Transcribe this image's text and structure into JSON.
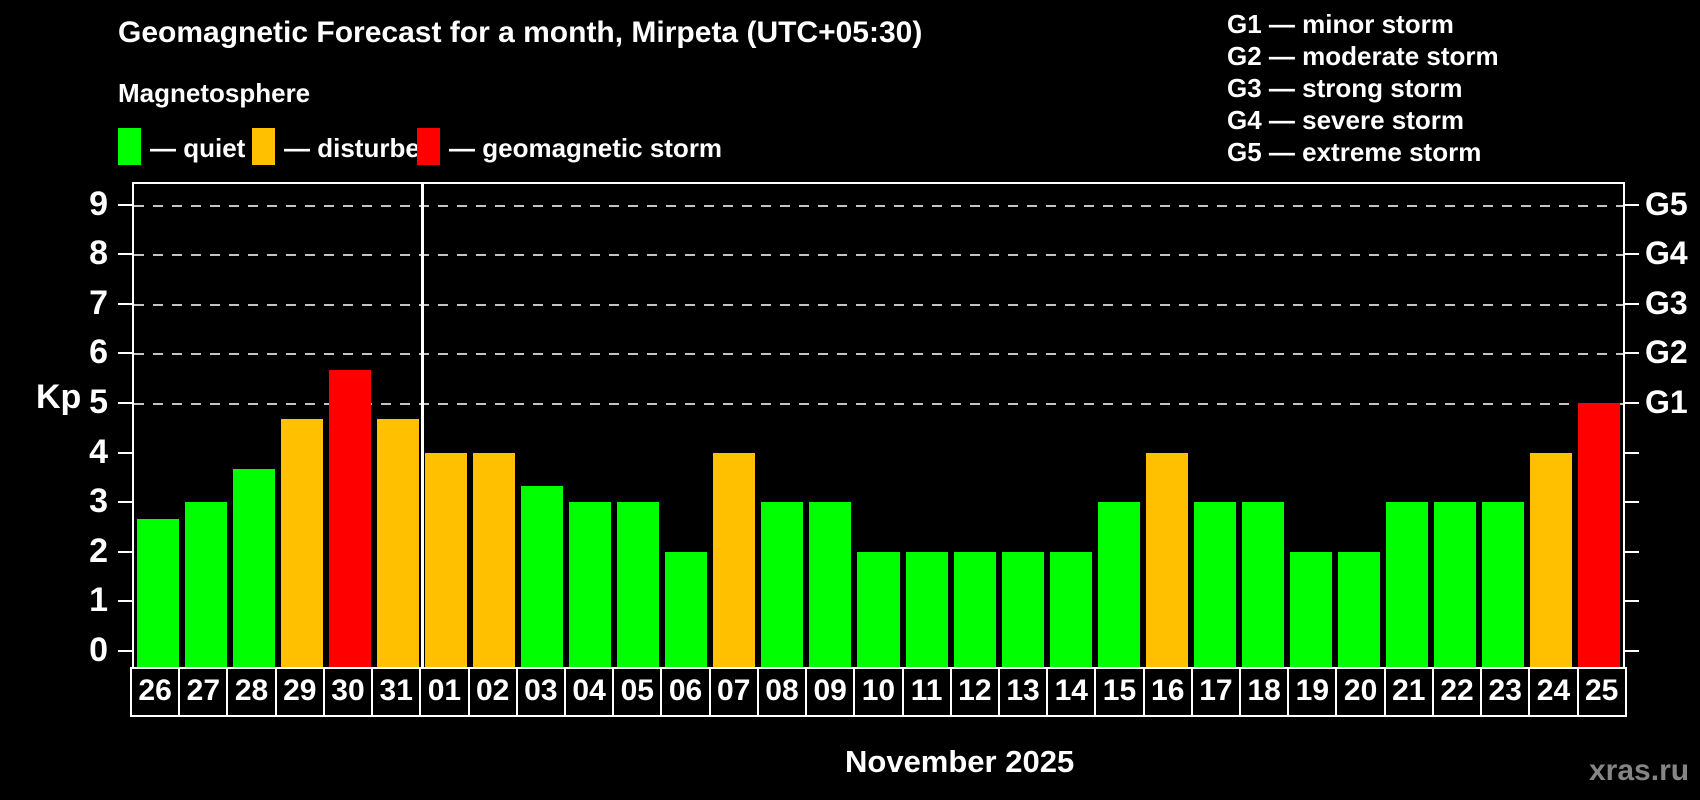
{
  "header": {
    "title": "Geomagnetic Forecast for a month, Mirpeta (UTC+05:30)",
    "subtitle": "Magnetosphere"
  },
  "legend": {
    "items": [
      {
        "status": "quiet",
        "label": "— quiet"
      },
      {
        "status": "disturbed",
        "label": "— disturbed"
      },
      {
        "status": "storm",
        "label": "— geomagnetic storm"
      }
    ]
  },
  "storm_scale": [
    "G1 — minor storm",
    "G2 — moderate storm",
    "G3 — strong storm",
    "G4 — severe storm",
    "G5 — extreme storm"
  ],
  "colors": {
    "quiet": "#00ff00",
    "disturbed": "#ffc000",
    "storm": "#ff0000",
    "axis": "#ffffff",
    "grid": "#c3c3c3",
    "watermark": "#858585"
  },
  "chart_data": {
    "type": "bar",
    "title": "Geomagnetic Forecast for a month, Mirpeta (UTC+05:30)",
    "ylabel": "Kp",
    "xlabel": "November 2025",
    "ylim": [
      0,
      9
    ],
    "yticks": [
      0,
      1,
      2,
      3,
      4,
      5,
      6,
      7,
      8,
      9
    ],
    "grid_levels": [
      5,
      6,
      7,
      8,
      9
    ],
    "grid_style": "dashed",
    "right_axis": [
      {
        "kp": 5,
        "label": "G1"
      },
      {
        "kp": 6,
        "label": "G2"
      },
      {
        "kp": 7,
        "label": "G3"
      },
      {
        "kp": 8,
        "label": "G4"
      },
      {
        "kp": 9,
        "label": "G5"
      }
    ],
    "categories": [
      "26",
      "27",
      "28",
      "29",
      "30",
      "31",
      "01",
      "02",
      "03",
      "04",
      "05",
      "06",
      "07",
      "08",
      "09",
      "10",
      "11",
      "12",
      "13",
      "14",
      "15",
      "16",
      "17",
      "18",
      "19",
      "20",
      "21",
      "22",
      "23",
      "24",
      "25"
    ],
    "values": [
      2.67,
      3,
      3.67,
      4.67,
      5.67,
      4.67,
      4,
      4,
      3.33,
      3,
      3,
      2,
      4,
      3,
      3,
      2,
      2,
      2,
      2,
      2,
      3,
      4,
      3,
      3,
      2,
      2,
      3,
      3,
      3,
      4,
      5
    ],
    "statuses": [
      "quiet",
      "quiet",
      "quiet",
      "disturbed",
      "storm",
      "disturbed",
      "disturbed",
      "disturbed",
      "quiet",
      "quiet",
      "quiet",
      "quiet",
      "disturbed",
      "quiet",
      "quiet",
      "quiet",
      "quiet",
      "quiet",
      "quiet",
      "quiet",
      "quiet",
      "disturbed",
      "quiet",
      "quiet",
      "quiet",
      "quiet",
      "quiet",
      "quiet",
      "quiet",
      "disturbed",
      "storm"
    ],
    "month_separator_after_index": 5
  },
  "footer": {
    "month_label": "November 2025",
    "watermark": "xras.ru"
  }
}
